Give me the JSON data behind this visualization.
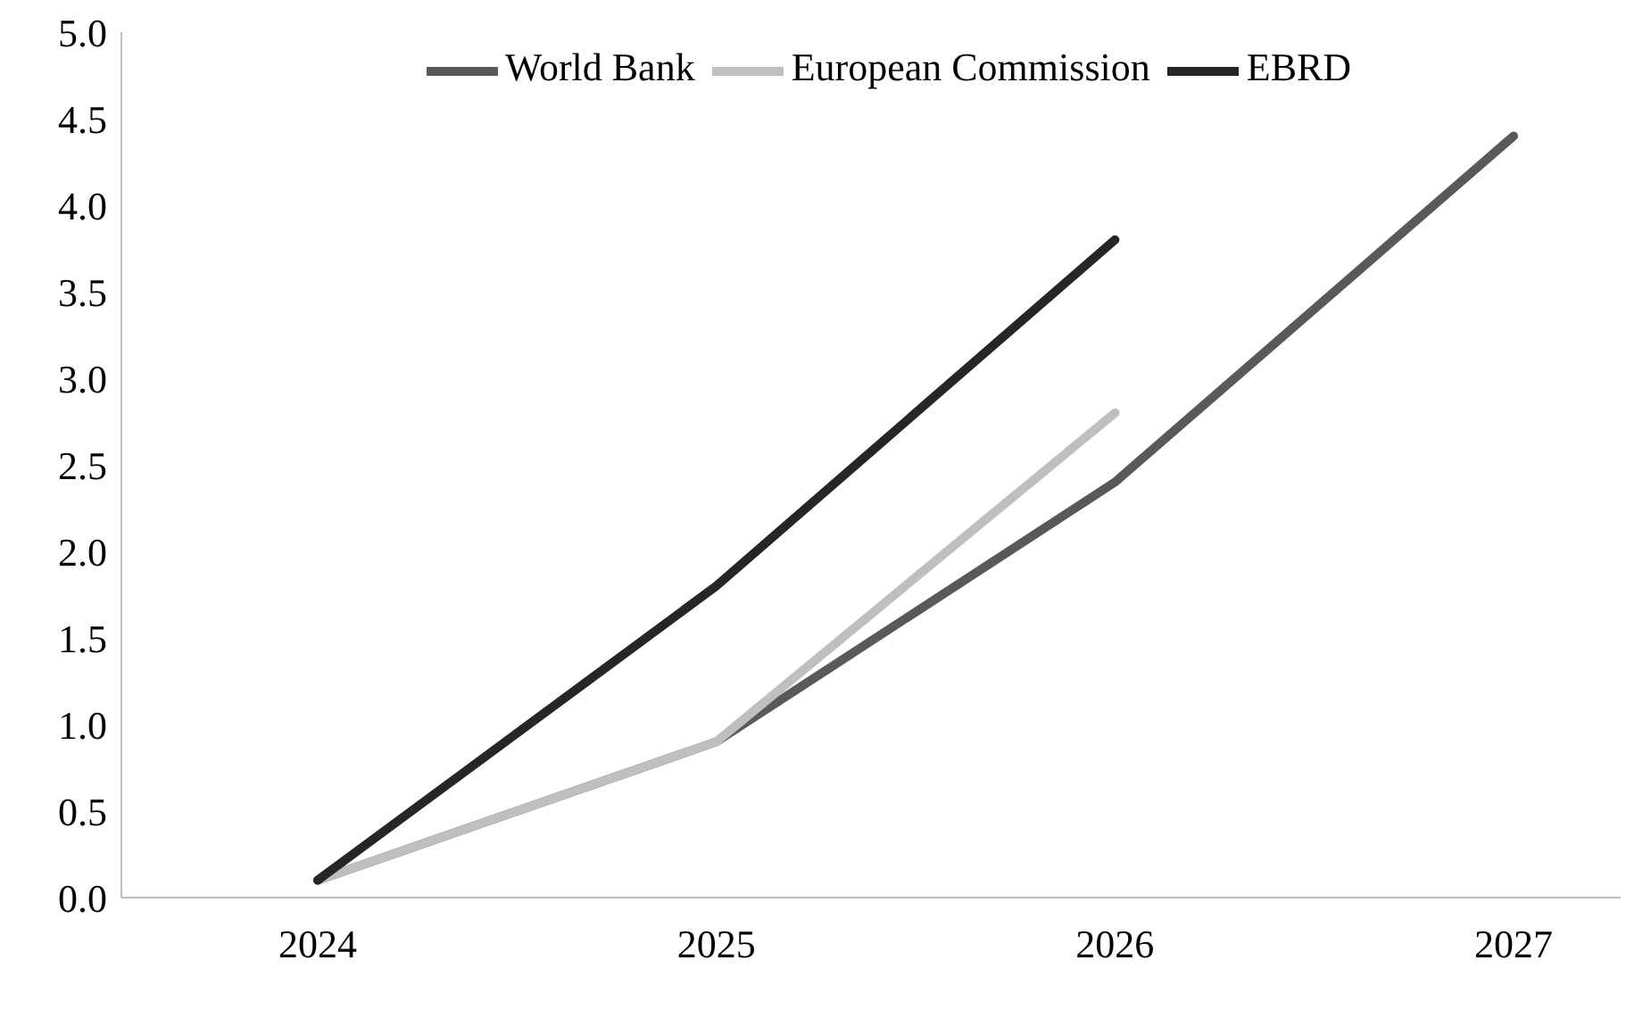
{
  "chart_data": {
    "type": "line",
    "categories": [
      "2024",
      "2025",
      "2026",
      "2027"
    ],
    "series": [
      {
        "name": "World Bank",
        "color": "#595959",
        "values": [
          0.1,
          0.9,
          2.4,
          4.4
        ]
      },
      {
        "name": "European Commission",
        "color": "#bfbfbf",
        "values": [
          0.1,
          0.9,
          2.8,
          null
        ]
      },
      {
        "name": "EBRD",
        "color": "#262626",
        "values": [
          0.1,
          1.8,
          3.8,
          null
        ]
      }
    ],
    "ylim": [
      0,
      5
    ],
    "yticks": [
      {
        "value": 0,
        "label": "0.0"
      },
      {
        "value": 0.5,
        "label": "0.5"
      },
      {
        "value": 1,
        "label": "1.0"
      },
      {
        "value": 1.5,
        "label": "1.5"
      },
      {
        "value": 2,
        "label": "2.0"
      },
      {
        "value": 2.5,
        "label": "2.5"
      },
      {
        "value": 3,
        "label": "3.0"
      },
      {
        "value": 3.5,
        "label": "3.5"
      },
      {
        "value": 4,
        "label": "4.0"
      },
      {
        "value": 4.5,
        "label": "4.5"
      },
      {
        "value": 5,
        "label": "5.0"
      }
    ],
    "grid": false,
    "legend": "top",
    "marker": "none",
    "line_style": "solid"
  }
}
